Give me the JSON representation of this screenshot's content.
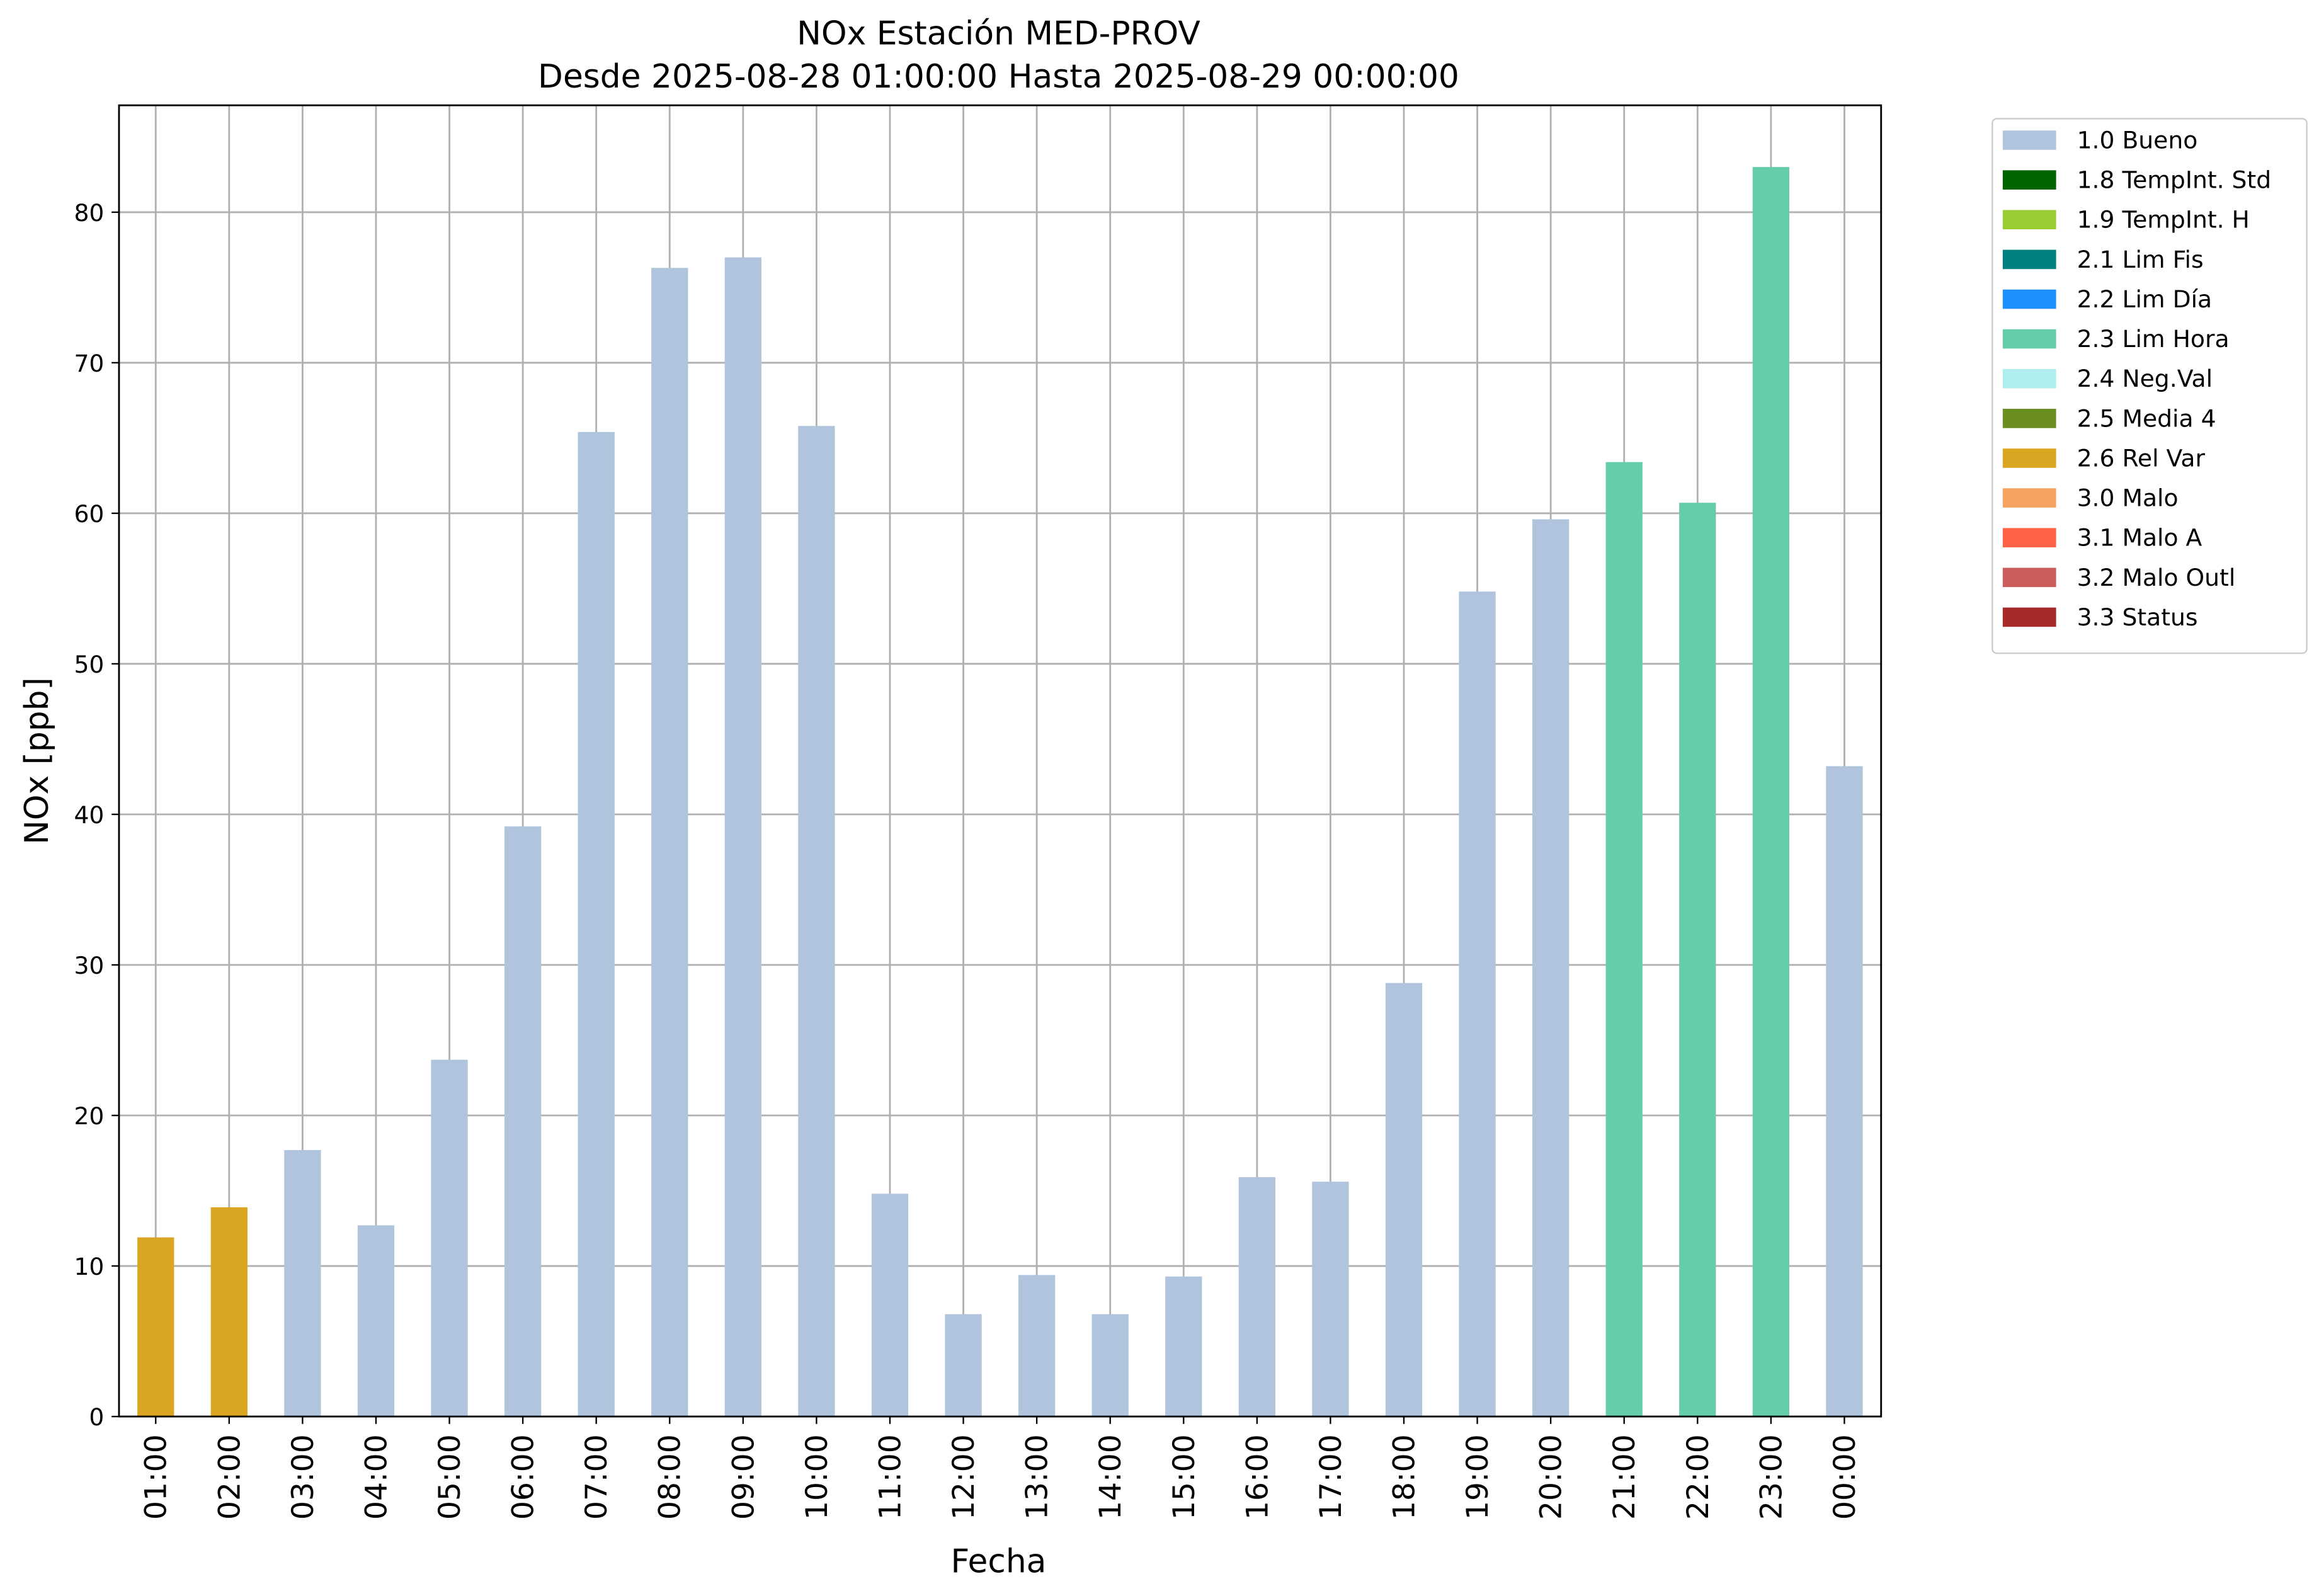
{
  "chart_data": {
    "type": "bar",
    "stacked": true,
    "title": "NOx Estación MED-PROV",
    "subtitle": "Desde 2025-08-28 01:00:00 Hasta 2025-08-29 00:00:00",
    "x_label": "Fecha",
    "y_label": "NOx [ppb]",
    "categories": [
      "01:00",
      "02:00",
      "03:00",
      "04:00",
      "05:00",
      "06:00",
      "07:00",
      "08:00",
      "09:00",
      "10:00",
      "11:00",
      "12:00",
      "13:00",
      "14:00",
      "15:00",
      "16:00",
      "17:00",
      "18:00",
      "19:00",
      "20:00",
      "21:00",
      "22:00",
      "23:00",
      "00:00"
    ],
    "ylim": [
      0,
      87.1
    ],
    "yticks": [
      0,
      10,
      20,
      30,
      40,
      50,
      60,
      70,
      80
    ],
    "grid": true,
    "legend": "outside-upper-right",
    "series": [
      {
        "name": "1.0 Bueno",
        "color": "#b0c4de",
        "values": [
          null,
          null,
          17.7,
          12.7,
          23.7,
          39.2,
          65.4,
          76.3,
          77.0,
          65.8,
          14.8,
          6.8,
          9.4,
          6.8,
          9.3,
          15.9,
          15.6,
          28.8,
          54.8,
          59.6,
          null,
          null,
          null,
          43.2
        ]
      },
      {
        "name": "1.8 TempInt. Std",
        "color": "#006400",
        "values": [
          null,
          null,
          null,
          null,
          null,
          null,
          null,
          null,
          null,
          null,
          null,
          null,
          null,
          null,
          null,
          null,
          null,
          null,
          null,
          null,
          null,
          null,
          null,
          null
        ]
      },
      {
        "name": "1.9 TempInt. H",
        "color": "#9acd32",
        "values": [
          null,
          null,
          null,
          null,
          null,
          null,
          null,
          null,
          null,
          null,
          null,
          null,
          null,
          null,
          null,
          null,
          null,
          null,
          null,
          null,
          null,
          null,
          null,
          null
        ]
      },
      {
        "name": "2.1 Lim Fis",
        "color": "#008080",
        "values": [
          null,
          null,
          null,
          null,
          null,
          null,
          null,
          null,
          null,
          null,
          null,
          null,
          null,
          null,
          null,
          null,
          null,
          null,
          null,
          null,
          null,
          null,
          null,
          null
        ]
      },
      {
        "name": "2.2 Lim Día",
        "color": "#1e90ff",
        "values": [
          null,
          null,
          null,
          null,
          null,
          null,
          null,
          null,
          null,
          null,
          null,
          null,
          null,
          null,
          null,
          null,
          null,
          null,
          null,
          null,
          null,
          null,
          null,
          null
        ]
      },
      {
        "name": "2.3 Lim Hora",
        "color": "#66cdaa",
        "values": [
          null,
          null,
          null,
          null,
          null,
          null,
          null,
          null,
          null,
          null,
          null,
          null,
          null,
          null,
          null,
          null,
          null,
          null,
          null,
          null,
          63.4,
          60.7,
          83.0,
          null
        ]
      },
      {
        "name": "2.4 Neg.Val",
        "color": "#afeeee",
        "values": [
          null,
          null,
          null,
          null,
          null,
          null,
          null,
          null,
          null,
          null,
          null,
          null,
          null,
          null,
          null,
          null,
          null,
          null,
          null,
          null,
          null,
          null,
          null,
          null
        ]
      },
      {
        "name": "2.5 Media 4",
        "color": "#6b8e23",
        "values": [
          null,
          null,
          null,
          null,
          null,
          null,
          null,
          null,
          null,
          null,
          null,
          null,
          null,
          null,
          null,
          null,
          null,
          null,
          null,
          null,
          null,
          null,
          null,
          null
        ]
      },
      {
        "name": "2.6 Rel Var",
        "color": "#daa520",
        "values": [
          11.9,
          13.9,
          null,
          null,
          null,
          null,
          null,
          null,
          null,
          null,
          null,
          null,
          null,
          null,
          null,
          null,
          null,
          null,
          null,
          null,
          null,
          null,
          null,
          null
        ]
      },
      {
        "name": "3.0 Malo",
        "color": "#f4a460",
        "values": [
          null,
          null,
          null,
          null,
          null,
          null,
          null,
          null,
          null,
          null,
          null,
          null,
          null,
          null,
          null,
          null,
          null,
          null,
          null,
          null,
          null,
          null,
          null,
          null
        ]
      },
      {
        "name": "3.1 Malo A",
        "color": "#ff6347",
        "values": [
          null,
          null,
          null,
          null,
          null,
          null,
          null,
          null,
          null,
          null,
          null,
          null,
          null,
          null,
          null,
          null,
          null,
          null,
          null,
          null,
          null,
          null,
          null,
          null
        ]
      },
      {
        "name": "3.2 Malo Outl",
        "color": "#cd5c5c",
        "values": [
          null,
          null,
          null,
          null,
          null,
          null,
          null,
          null,
          null,
          null,
          null,
          null,
          null,
          null,
          null,
          null,
          null,
          null,
          null,
          null,
          null,
          null,
          null,
          null
        ]
      },
      {
        "name": "3.3 Status",
        "color": "#a52a2a",
        "values": [
          null,
          null,
          null,
          null,
          null,
          null,
          null,
          null,
          null,
          null,
          null,
          null,
          null,
          null,
          null,
          null,
          null,
          null,
          null,
          null,
          null,
          null,
          null,
          null
        ]
      }
    ]
  }
}
